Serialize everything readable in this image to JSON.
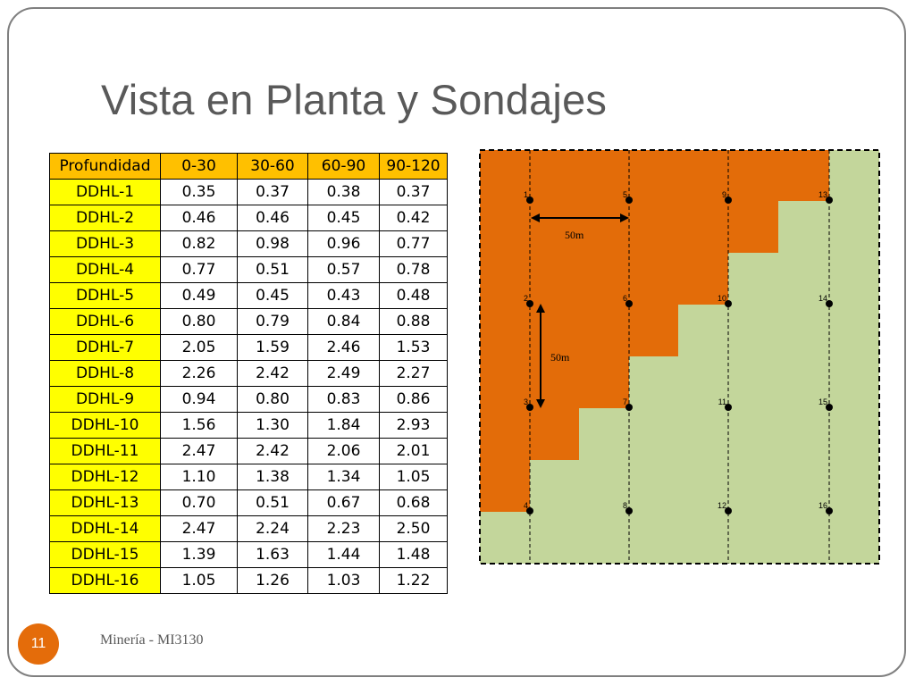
{
  "slide": {
    "title": "Vista en Planta y Sondajes",
    "footer": "Minería - MI3130",
    "page_number": "11"
  },
  "table": {
    "headers": [
      "Profundidad",
      "0-30",
      "30-60",
      "60-90",
      "90-120"
    ],
    "rows": [
      {
        "name": "DDHL-1",
        "values": [
          "0.35",
          "0.37",
          "0.38",
          "0.37"
        ]
      },
      {
        "name": "DDHL-2",
        "values": [
          "0.46",
          "0.46",
          "0.45",
          "0.42"
        ]
      },
      {
        "name": "DDHL-3",
        "values": [
          "0.82",
          "0.98",
          "0.96",
          "0.77"
        ]
      },
      {
        "name": "DDHL-4",
        "values": [
          "0.77",
          "0.51",
          "0.57",
          "0.78"
        ]
      },
      {
        "name": "DDHL-5",
        "values": [
          "0.49",
          "0.45",
          "0.43",
          "0.48"
        ]
      },
      {
        "name": "DDHL-6",
        "values": [
          "0.80",
          "0.79",
          "0.84",
          "0.88"
        ]
      },
      {
        "name": "DDHL-7",
        "values": [
          "2.05",
          "1.59",
          "2.46",
          "1.53"
        ]
      },
      {
        "name": "DDHL-8",
        "values": [
          "2.26",
          "2.42",
          "2.49",
          "2.27"
        ]
      },
      {
        "name": "DDHL-9",
        "values": [
          "0.94",
          "0.80",
          "0.83",
          "0.86"
        ]
      },
      {
        "name": "DDHL-10",
        "values": [
          "1.56",
          "1.30",
          "1.84",
          "2.93"
        ]
      },
      {
        "name": "DDHL-11",
        "values": [
          "2.47",
          "2.42",
          "2.06",
          "2.01"
        ]
      },
      {
        "name": "DDHL-12",
        "values": [
          "1.10",
          "1.38",
          "1.34",
          "1.05"
        ]
      },
      {
        "name": "DDHL-13",
        "values": [
          "0.70",
          "0.51",
          "0.67",
          "0.68"
        ]
      },
      {
        "name": "DDHL-14",
        "values": [
          "2.47",
          "2.24",
          "2.23",
          "2.50"
        ]
      },
      {
        "name": "DDHL-15",
        "values": [
          "1.39",
          "1.63",
          "1.44",
          "1.48"
        ]
      },
      {
        "name": "DDHL-16",
        "values": [
          "1.05",
          "1.26",
          "1.03",
          "1.22"
        ]
      }
    ]
  },
  "plan_view": {
    "hole_labels": [
      "1",
      "2",
      "3",
      "4",
      "5",
      "6",
      "7",
      "8",
      "9",
      "10",
      "11",
      "12",
      "13",
      "14",
      "15",
      "16"
    ],
    "horizontal_spacing_label": "50m",
    "vertical_spacing_label": "50m",
    "colors": {
      "ore": "#e36c09",
      "waste": "#c3d69b",
      "page_badge": "#e46c0a",
      "table_header": "#ffc000",
      "table_row_header": "#ffff00"
    }
  }
}
